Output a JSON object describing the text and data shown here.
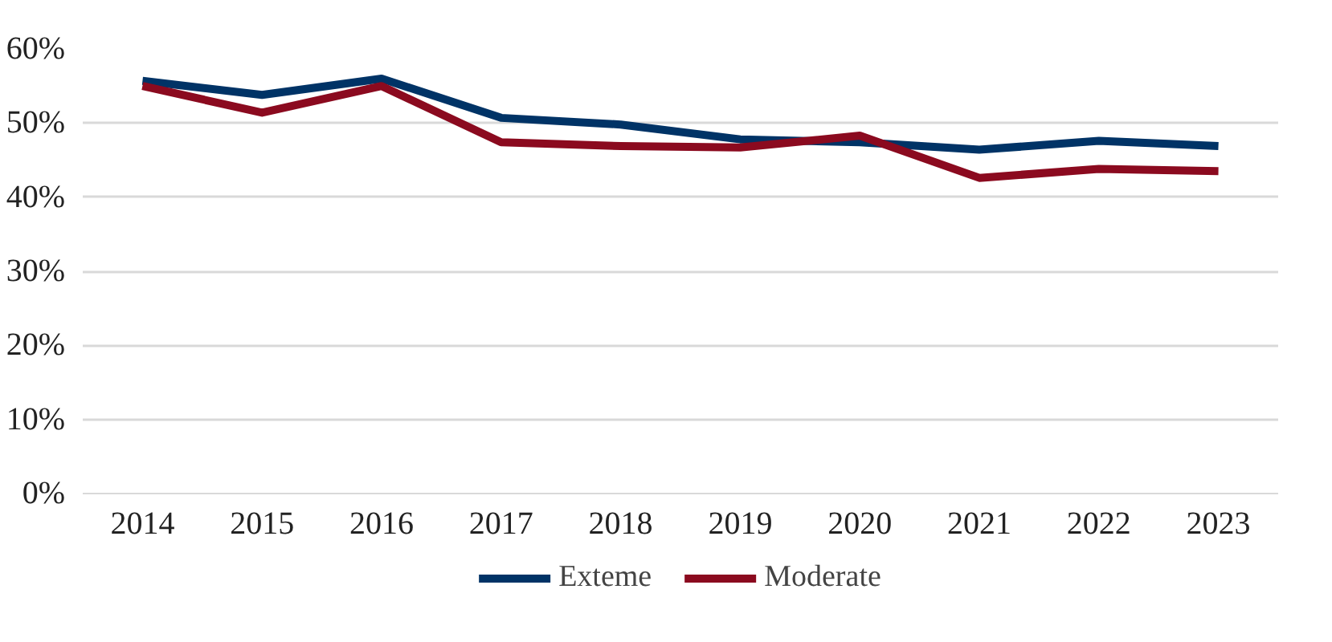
{
  "chart_data": {
    "type": "line",
    "categories": [
      "2014",
      "2015",
      "2016",
      "2017",
      "2018",
      "2019",
      "2020",
      "2021",
      "2022",
      "2023"
    ],
    "series": [
      {
        "name": "Exteme",
        "color": "#003366",
        "values": [
          55.7,
          53.8,
          56.0,
          50.7,
          49.8,
          47.8,
          47.4,
          46.4,
          47.6,
          46.9
        ]
      },
      {
        "name": "Moderate",
        "color": "#8b0a1f",
        "values": [
          55.0,
          51.4,
          55.0,
          47.4,
          46.9,
          46.7,
          48.3,
          42.6,
          43.8,
          43.5
        ]
      }
    ],
    "ylim": [
      0,
      60
    ],
    "yticks": [
      {
        "value": 0,
        "label": "0%"
      },
      {
        "value": 10,
        "label": "10%"
      },
      {
        "value": 20,
        "label": "20%"
      },
      {
        "value": 30,
        "label": "30%"
      },
      {
        "value": 40,
        "label": "40%"
      },
      {
        "value": 50,
        "label": "50%"
      },
      {
        "value": 60,
        "label": "60%"
      }
    ],
    "grid": "y",
    "legend": "bottom",
    "marker": "none",
    "line_style": "solid"
  }
}
